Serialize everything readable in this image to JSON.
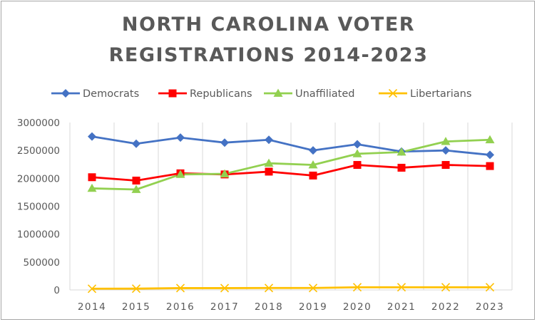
{
  "chart_data": {
    "type": "line",
    "title_lines": [
      "NORTH CAROLINA VOTER",
      "REGISTRATIONS 2014-2023"
    ],
    "xlabel": "",
    "ylabel": "",
    "categories": [
      "2014",
      "2015",
      "2016",
      "2017",
      "2018",
      "2019",
      "2020",
      "2021",
      "2022",
      "2023"
    ],
    "ylim": [
      0,
      3000000
    ],
    "yticks": [
      0,
      500000,
      1000000,
      1500000,
      2000000,
      2500000,
      3000000
    ],
    "ytick_labels": [
      "0",
      "500000",
      "1000000",
      "1500000",
      "2000000",
      "2500000",
      "3000000"
    ],
    "grid": "vertical",
    "legend_position": "top",
    "series": [
      {
        "name": "Democrats",
        "color": "#4472c4",
        "marker": "diamond",
        "values": [
          2750000,
          2620000,
          2730000,
          2640000,
          2690000,
          2500000,
          2610000,
          2480000,
          2500000,
          2420000
        ]
      },
      {
        "name": "Republicans",
        "color": "#ff0000",
        "marker": "square",
        "values": [
          2020000,
          1960000,
          2090000,
          2070000,
          2120000,
          2050000,
          2240000,
          2190000,
          2240000,
          2220000
        ]
      },
      {
        "name": "Unaffiliated",
        "color": "#92d050",
        "marker": "triangle",
        "values": [
          1820000,
          1800000,
          2070000,
          2080000,
          2270000,
          2240000,
          2440000,
          2470000,
          2660000,
          2690000
        ]
      },
      {
        "name": "Libertarians",
        "color": "#ffc000",
        "marker": "x",
        "values": [
          22000,
          23000,
          33000,
          33000,
          35000,
          35000,
          48000,
          48000,
          48000,
          48000
        ]
      }
    ]
  }
}
